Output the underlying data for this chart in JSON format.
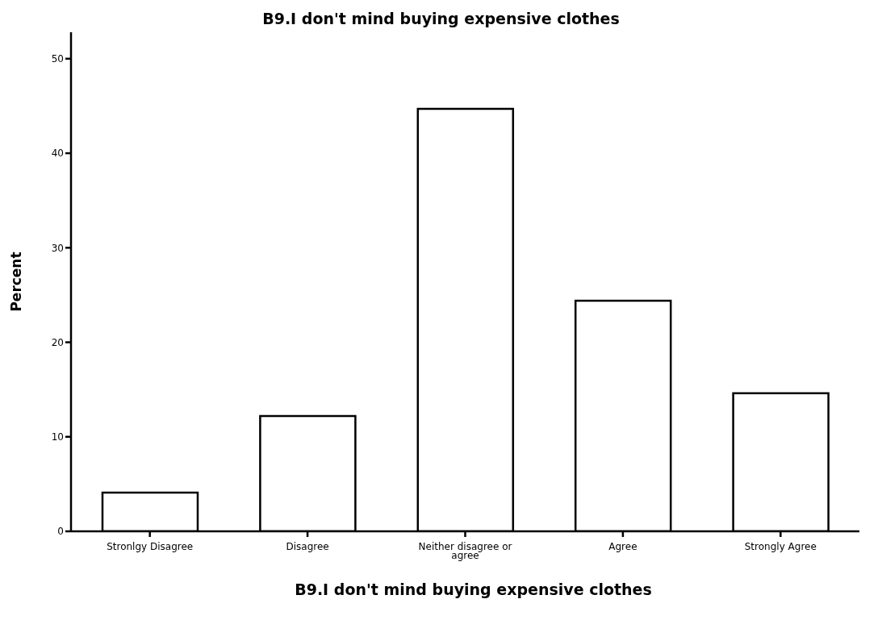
{
  "chart_data": {
    "type": "bar",
    "title": "B9.I don't mind buying expensive clothes",
    "xlabel": "B9.I don't mind buying expensive clothes",
    "ylabel": "Percent",
    "categories": [
      "Stronlgy Disagree",
      "Disagree",
      "Neither disagree or agree",
      "Agree",
      "Strongly Agree"
    ],
    "values": [
      4.1,
      12.2,
      44.7,
      24.4,
      14.6
    ],
    "color": "#ffffff",
    "ylim": [
      0,
      52.8
    ],
    "yticks": [
      0,
      10,
      20,
      30,
      40,
      50
    ],
    "grid": false,
    "legend": false
  }
}
